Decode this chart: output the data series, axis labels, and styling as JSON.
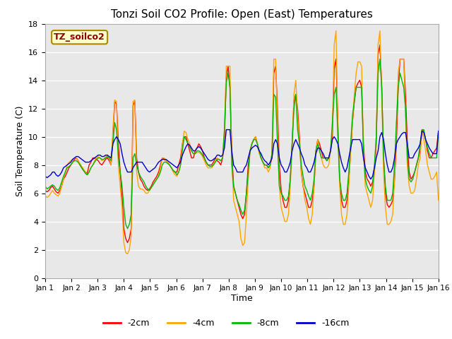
{
  "title": "Tonzi Soil CO2 Profile: Open (East) Temperatures",
  "xlabel": "Time",
  "ylabel": "Soil Temperature (C)",
  "ylim": [
    0,
    18
  ],
  "xlim": [
    0,
    15
  ],
  "xtick_labels": [
    "Jan 1",
    "Jan 2",
    "Jan 3",
    "Jan 4",
    "Jan 5",
    "Jan 6",
    "Jan 7",
    "Jan 8",
    "Jan 9",
    "Jan 10",
    "Jan 11",
    "Jan 12",
    "Jan 13",
    "Jan 14",
    "Jan 15",
    "Jan 16"
  ],
  "legend_label": "TZ_soilco2",
  "series_labels": [
    "-2cm",
    "-4cm",
    "-8cm",
    "-16cm"
  ],
  "series_colors": [
    "#ff0000",
    "#ffa500",
    "#00bb00",
    "#0000cc"
  ],
  "fig_bg_color": "#ffffff",
  "plot_bg_color": "#e8e8e8",
  "grid_color": "#ffffff",
  "n_per_day": 12,
  "d2cm": [
    6.2,
    6.1,
    6.2,
    6.4,
    6.5,
    6.3,
    6.1,
    6.0,
    6.2,
    6.5,
    7.0,
    7.2,
    7.5,
    7.8,
    8.0,
    8.2,
    8.4,
    8.5,
    8.3,
    8.0,
    7.8,
    7.6,
    7.5,
    7.4,
    8.0,
    8.2,
    8.5,
    8.5,
    8.4,
    8.3,
    8.1,
    8.0,
    8.2,
    8.4,
    8.5,
    8.3,
    8.0,
    10.0,
    12.5,
    12.3,
    9.5,
    7.5,
    5.8,
    3.5,
    2.8,
    2.5,
    2.8,
    3.5,
    12.2,
    12.5,
    8.5,
    7.5,
    7.0,
    6.8,
    6.5,
    6.3,
    6.2,
    6.3,
    6.5,
    6.8,
    7.0,
    7.2,
    7.5,
    8.0,
    8.5,
    8.4,
    8.3,
    8.2,
    8.0,
    7.8,
    7.6,
    7.5,
    7.5,
    8.0,
    8.5,
    9.5,
    10.0,
    10.0,
    9.5,
    9.0,
    8.5,
    8.5,
    9.0,
    9.2,
    9.5,
    9.3,
    9.0,
    8.5,
    8.2,
    8.0,
    8.0,
    8.0,
    8.2,
    8.5,
    8.3,
    8.2,
    8.0,
    8.5,
    10.0,
    14.2,
    15.0,
    13.5,
    9.0,
    6.5,
    6.0,
    5.5,
    5.0,
    4.5,
    4.2,
    4.5,
    6.0,
    8.0,
    9.0,
    9.5,
    9.8,
    10.0,
    9.5,
    9.0,
    8.5,
    8.2,
    8.0,
    8.0,
    7.8,
    8.0,
    8.5,
    14.5,
    15.0,
    12.0,
    8.0,
    6.2,
    5.5,
    5.0,
    5.0,
    5.5,
    7.0,
    9.5,
    12.5,
    13.0,
    12.0,
    10.0,
    7.5,
    6.5,
    6.0,
    5.5,
    5.0,
    5.0,
    5.5,
    6.5,
    9.0,
    9.8,
    9.5,
    9.0,
    8.5,
    8.5,
    8.3,
    8.5,
    9.0,
    10.0,
    14.8,
    15.5,
    11.0,
    7.0,
    5.5,
    5.0,
    5.0,
    5.5,
    7.0,
    9.0,
    11.0,
    12.5,
    13.5,
    13.8,
    14.0,
    13.5,
    9.5,
    7.5,
    7.0,
    6.8,
    6.5,
    6.8,
    7.5,
    9.5,
    15.8,
    16.5,
    13.5,
    8.5,
    6.0,
    5.2,
    5.0,
    5.2,
    5.5,
    7.0,
    9.5,
    13.5,
    15.5,
    15.5,
    15.5,
    13.0,
    9.5,
    7.5,
    7.0,
    7.2,
    7.5,
    8.0,
    8.5,
    9.0,
    10.5,
    10.4,
    9.8,
    9.0,
    8.5,
    8.5,
    8.8,
    9.0,
    9.2,
    10.4
  ],
  "d4cm": [
    5.8,
    5.7,
    5.8,
    6.0,
    6.2,
    6.0,
    5.9,
    5.8,
    6.0,
    6.5,
    7.0,
    7.5,
    8.0,
    8.2,
    8.3,
    8.4,
    8.5,
    8.5,
    8.3,
    8.1,
    7.9,
    7.7,
    7.5,
    7.3,
    7.5,
    7.8,
    8.0,
    8.3,
    8.5,
    8.6,
    8.5,
    8.3,
    8.4,
    8.6,
    8.7,
    8.5,
    8.0,
    10.5,
    12.6,
    12.5,
    8.0,
    6.5,
    5.0,
    2.5,
    1.8,
    1.7,
    2.0,
    3.0,
    12.5,
    12.6,
    7.5,
    6.5,
    6.3,
    6.3,
    6.2,
    6.0,
    6.0,
    6.2,
    6.4,
    6.6,
    6.8,
    7.0,
    7.2,
    7.8,
    8.5,
    8.5,
    8.3,
    8.2,
    8.0,
    7.8,
    7.5,
    7.3,
    7.2,
    7.5,
    8.0,
    9.5,
    10.4,
    10.3,
    9.8,
    9.5,
    9.0,
    8.8,
    8.8,
    8.9,
    8.9,
    8.8,
    8.6,
    8.3,
    8.0,
    7.8,
    7.8,
    7.8,
    8.0,
    8.3,
    8.5,
    8.4,
    8.3,
    8.5,
    10.5,
    15.0,
    15.0,
    15.0,
    8.5,
    5.5,
    5.0,
    4.5,
    4.0,
    2.8,
    2.3,
    2.5,
    4.5,
    7.0,
    9.0,
    9.5,
    9.8,
    10.0,
    9.5,
    8.8,
    8.5,
    8.2,
    7.8,
    7.8,
    7.5,
    7.8,
    9.0,
    15.5,
    15.5,
    11.0,
    6.5,
    5.0,
    4.5,
    4.0,
    4.0,
    4.5,
    6.5,
    9.5,
    13.0,
    14.0,
    11.5,
    9.5,
    7.5,
    6.5,
    5.5,
    5.0,
    4.2,
    3.8,
    4.5,
    6.5,
    9.0,
    9.8,
    9.0,
    8.5,
    8.0,
    7.8,
    7.8,
    8.0,
    9.0,
    10.5,
    16.5,
    17.5,
    10.5,
    6.5,
    4.5,
    3.8,
    3.8,
    4.5,
    6.5,
    9.0,
    11.0,
    13.0,
    14.5,
    15.3,
    15.3,
    15.0,
    9.0,
    6.5,
    6.0,
    5.5,
    5.0,
    5.5,
    7.5,
    10.0,
    16.5,
    17.5,
    13.0,
    7.5,
    5.0,
    3.8,
    3.8,
    4.0,
    4.5,
    7.0,
    10.5,
    14.5,
    15.5,
    15.5,
    15.5,
    11.5,
    8.0,
    6.5,
    6.0,
    6.0,
    6.2,
    7.0,
    8.0,
    8.5,
    10.5,
    9.8,
    9.0,
    8.0,
    7.5,
    7.0,
    7.0,
    7.2,
    7.5,
    5.5
  ],
  "d8cm": [
    6.5,
    6.3,
    6.4,
    6.5,
    6.6,
    6.5,
    6.3,
    6.2,
    6.4,
    6.8,
    7.2,
    7.5,
    7.8,
    7.9,
    8.0,
    8.2,
    8.3,
    8.3,
    8.2,
    8.0,
    7.8,
    7.6,
    7.4,
    7.3,
    7.5,
    7.8,
    8.0,
    8.2,
    8.4,
    8.5,
    8.5,
    8.4,
    8.4,
    8.5,
    8.6,
    8.5,
    8.3,
    9.5,
    11.0,
    10.5,
    8.5,
    7.5,
    6.5,
    5.0,
    3.8,
    3.5,
    3.8,
    4.5,
    8.5,
    8.8,
    8.0,
    7.5,
    7.2,
    7.0,
    6.8,
    6.5,
    6.3,
    6.2,
    6.4,
    6.6,
    6.8,
    7.0,
    7.2,
    7.5,
    8.0,
    8.2,
    8.2,
    8.1,
    8.0,
    7.8,
    7.6,
    7.5,
    7.3,
    7.5,
    8.0,
    9.0,
    10.0,
    9.8,
    9.5,
    9.3,
    9.0,
    8.8,
    8.8,
    9.0,
    9.0,
    8.9,
    8.7,
    8.5,
    8.2,
    8.0,
    7.9,
    7.9,
    8.0,
    8.2,
    8.4,
    8.4,
    8.3,
    8.5,
    10.5,
    13.8,
    14.5,
    13.5,
    8.0,
    6.5,
    6.0,
    5.5,
    5.2,
    4.8,
    4.5,
    4.8,
    6.0,
    7.5,
    9.0,
    9.5,
    9.8,
    9.8,
    9.5,
    9.0,
    8.5,
    8.2,
    8.0,
    8.0,
    7.8,
    8.0,
    8.8,
    13.0,
    12.8,
    9.5,
    6.5,
    6.0,
    5.8,
    5.5,
    5.5,
    5.8,
    7.0,
    9.5,
    12.0,
    13.0,
    10.5,
    9.5,
    8.0,
    7.2,
    6.5,
    6.2,
    5.8,
    5.5,
    6.0,
    7.0,
    9.0,
    9.5,
    9.0,
    8.5,
    8.5,
    8.5,
    8.3,
    8.5,
    9.0,
    11.0,
    13.0,
    13.5,
    10.0,
    7.0,
    6.0,
    5.5,
    5.5,
    6.0,
    7.5,
    9.5,
    11.5,
    12.5,
    13.5,
    13.5,
    13.5,
    13.5,
    9.0,
    7.0,
    6.5,
    6.2,
    6.0,
    6.5,
    8.0,
    10.0,
    14.5,
    15.5,
    13.5,
    8.5,
    6.5,
    5.5,
    5.5,
    5.5,
    6.0,
    8.0,
    11.0,
    13.5,
    14.5,
    14.0,
    13.5,
    12.0,
    8.5,
    7.0,
    6.8,
    7.0,
    7.5,
    8.0,
    8.5,
    9.5,
    10.5,
    10.5,
    9.8,
    9.2,
    8.8,
    8.5,
    8.5,
    8.5,
    8.5,
    10.4
  ],
  "d16cm": [
    7.2,
    7.1,
    7.2,
    7.3,
    7.5,
    7.5,
    7.3,
    7.2,
    7.3,
    7.5,
    7.8,
    7.9,
    8.0,
    8.1,
    8.2,
    8.4,
    8.5,
    8.6,
    8.6,
    8.5,
    8.4,
    8.3,
    8.2,
    8.2,
    8.2,
    8.3,
    8.4,
    8.5,
    8.6,
    8.7,
    8.7,
    8.6,
    8.6,
    8.7,
    8.7,
    8.6,
    8.5,
    9.5,
    9.8,
    10.0,
    9.8,
    9.5,
    8.8,
    8.2,
    7.8,
    7.5,
    7.5,
    7.5,
    7.8,
    8.0,
    8.2,
    8.2,
    8.2,
    8.2,
    8.0,
    7.8,
    7.6,
    7.5,
    7.6,
    7.7,
    7.8,
    8.0,
    8.2,
    8.3,
    8.4,
    8.4,
    8.4,
    8.3,
    8.2,
    8.1,
    8.0,
    7.9,
    7.8,
    8.0,
    8.2,
    8.7,
    9.0,
    9.3,
    9.5,
    9.4,
    9.2,
    9.0,
    9.0,
    9.2,
    9.3,
    9.2,
    9.0,
    8.8,
    8.6,
    8.4,
    8.3,
    8.3,
    8.4,
    8.5,
    8.7,
    8.7,
    8.6,
    8.7,
    9.2,
    10.5,
    10.5,
    10.5,
    9.0,
    8.0,
    7.8,
    7.5,
    7.5,
    7.5,
    7.5,
    7.8,
    8.0,
    8.5,
    9.0,
    9.2,
    9.3,
    9.4,
    9.3,
    9.0,
    8.8,
    8.5,
    8.3,
    8.2,
    8.0,
    8.2,
    8.5,
    9.5,
    9.8,
    9.5,
    8.5,
    8.0,
    7.8,
    7.5,
    7.5,
    7.8,
    8.2,
    9.0,
    9.5,
    9.8,
    9.5,
    9.2,
    8.8,
    8.5,
    8.0,
    7.8,
    7.5,
    7.5,
    7.8,
    8.2,
    8.8,
    9.2,
    9.2,
    9.0,
    8.8,
    8.5,
    8.5,
    8.5,
    9.0,
    9.8,
    10.0,
    9.8,
    9.5,
    8.8,
    8.2,
    7.8,
    7.5,
    7.8,
    8.5,
    9.2,
    9.8,
    9.8,
    9.8,
    9.8,
    9.8,
    9.5,
    8.5,
    7.8,
    7.5,
    7.2,
    7.0,
    7.2,
    7.8,
    8.5,
    9.0,
    10.0,
    10.3,
    9.8,
    8.8,
    8.0,
    7.5,
    7.5,
    7.8,
    8.5,
    9.5,
    9.8,
    10.0,
    10.2,
    10.3,
    10.3,
    9.5,
    8.5,
    8.5,
    8.5,
    8.8,
    9.0,
    9.2,
    9.5,
    10.4,
    10.3,
    9.8,
    9.5,
    9.2,
    9.0,
    8.8,
    8.8,
    8.8,
    10.4
  ]
}
